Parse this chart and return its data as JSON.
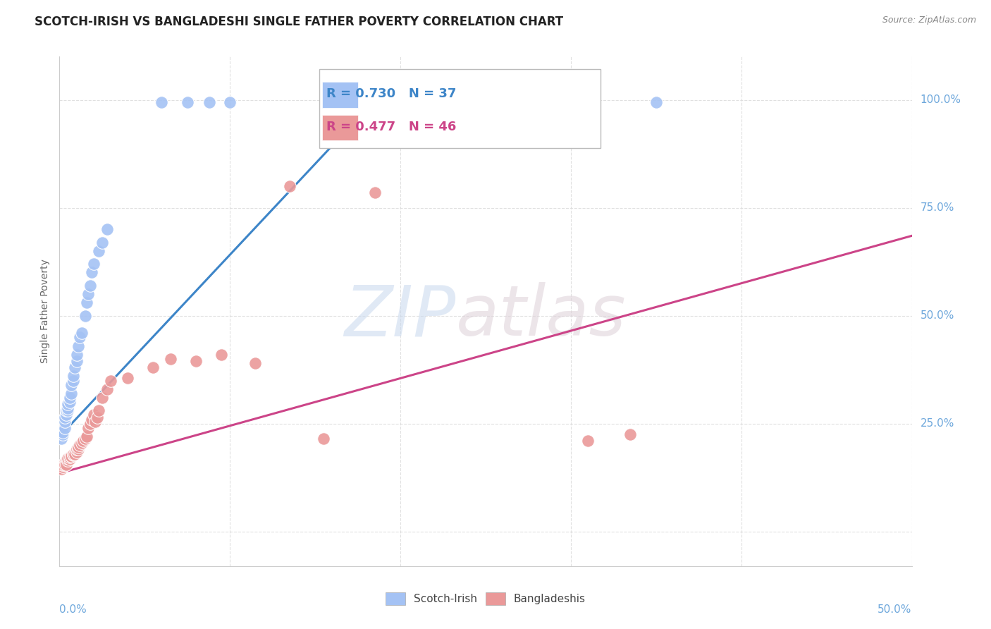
{
  "title": "SCOTCH-IRISH VS BANGLADESHI SINGLE FATHER POVERTY CORRELATION CHART",
  "source": "Source: ZipAtlas.com",
  "ylabel": "Single Father Poverty",
  "watermark_zip": "ZIP",
  "watermark_atlas": "atlas",
  "scotch_irish": {
    "x": [
      0.001,
      0.002,
      0.002,
      0.003,
      0.003,
      0.003,
      0.004,
      0.004,
      0.005,
      0.005,
      0.005,
      0.006,
      0.006,
      0.007,
      0.007,
      0.008,
      0.008,
      0.009,
      0.01,
      0.01,
      0.011,
      0.012,
      0.013,
      0.015,
      0.016,
      0.017,
      0.018,
      0.019,
      0.02,
      0.023,
      0.025,
      0.028,
      0.06,
      0.075,
      0.088,
      0.1,
      0.35
    ],
    "y": [
      0.215,
      0.225,
      0.23,
      0.24,
      0.255,
      0.265,
      0.27,
      0.28,
      0.28,
      0.285,
      0.295,
      0.3,
      0.31,
      0.32,
      0.34,
      0.35,
      0.36,
      0.38,
      0.395,
      0.41,
      0.43,
      0.45,
      0.46,
      0.5,
      0.53,
      0.55,
      0.57,
      0.6,
      0.62,
      0.65,
      0.67,
      0.7,
      0.995,
      0.995,
      0.995,
      0.995,
      0.995
    ],
    "color": "#a4c2f4",
    "trend_color": "#3d85c8"
  },
  "bangladeshi": {
    "x": [
      0.001,
      0.002,
      0.002,
      0.003,
      0.003,
      0.004,
      0.004,
      0.005,
      0.005,
      0.006,
      0.006,
      0.007,
      0.007,
      0.008,
      0.008,
      0.009,
      0.01,
      0.01,
      0.011,
      0.011,
      0.012,
      0.013,
      0.014,
      0.015,
      0.016,
      0.017,
      0.018,
      0.019,
      0.02,
      0.021,
      0.022,
      0.023,
      0.025,
      0.028,
      0.03,
      0.04,
      0.055,
      0.065,
      0.08,
      0.095,
      0.115,
      0.135,
      0.155,
      0.185,
      0.31,
      0.335
    ],
    "y": [
      0.145,
      0.15,
      0.155,
      0.16,
      0.155,
      0.165,
      0.155,
      0.165,
      0.17,
      0.168,
      0.172,
      0.175,
      0.175,
      0.178,
      0.18,
      0.18,
      0.185,
      0.19,
      0.19,
      0.195,
      0.2,
      0.205,
      0.21,
      0.215,
      0.22,
      0.24,
      0.25,
      0.26,
      0.27,
      0.255,
      0.265,
      0.28,
      0.31,
      0.33,
      0.35,
      0.355,
      0.38,
      0.4,
      0.395,
      0.41,
      0.39,
      0.8,
      0.215,
      0.785,
      0.21,
      0.225
    ],
    "color": "#ea9999",
    "trend_color": "#cc4488"
  },
  "blue_line": {
    "x0": 0.0,
    "y0": 0.22,
    "x1": 0.19,
    "y1": 1.02
  },
  "pink_line": {
    "x0": 0.0,
    "y0": 0.135,
    "x1": 0.5,
    "y1": 0.685
  },
  "xlim": [
    0.0,
    0.5
  ],
  "ylim": [
    -0.08,
    1.1
  ],
  "background_color": "#ffffff",
  "grid_color": "#dddddd",
  "title_fontsize": 12,
  "tick_color": "#6fa8dc",
  "ylabel_color": "#666666"
}
